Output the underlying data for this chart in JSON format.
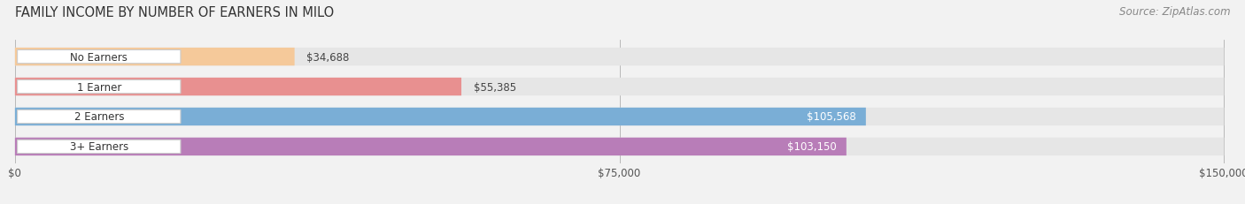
{
  "title": "FAMILY INCOME BY NUMBER OF EARNERS IN MILO",
  "source": "Source: ZipAtlas.com",
  "categories": [
    "No Earners",
    "1 Earner",
    "2 Earners",
    "3+ Earners"
  ],
  "values": [
    34688,
    55385,
    105568,
    103150
  ],
  "bar_colors": [
    "#f5c99a",
    "#e89090",
    "#7aaed6",
    "#b87db8"
  ],
  "label_colors": [
    "#444444",
    "#444444",
    "#ffffff",
    "#ffffff"
  ],
  "x_max": 150000,
  "x_ticks": [
    0,
    75000,
    150000
  ],
  "x_tick_labels": [
    "$0",
    "$75,000",
    "$150,000"
  ],
  "background_color": "#f2f2f2",
  "bar_track_color": "#e6e6e6",
  "title_fontsize": 10.5,
  "source_fontsize": 8.5,
  "label_fontsize": 8.5,
  "tick_fontsize": 8.5,
  "cat_fontsize": 8.5
}
